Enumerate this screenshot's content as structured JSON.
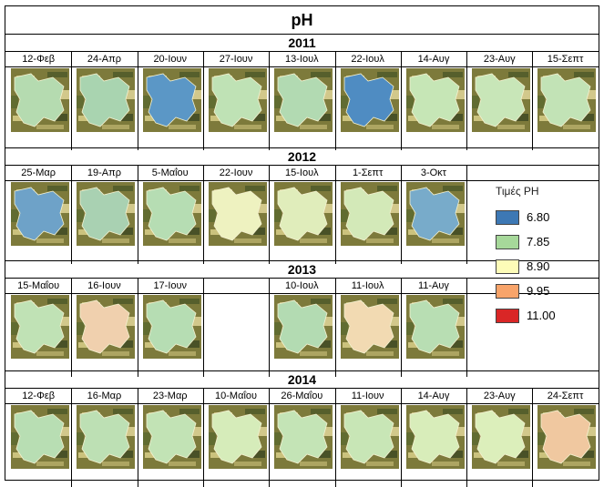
{
  "title": "pH",
  "legend": {
    "title": "Τιμές PH",
    "items": [
      {
        "value": "6.80",
        "color": "#3d78b4"
      },
      {
        "value": "7.85",
        "color": "#a6d89a"
      },
      {
        "value": "8.90",
        "color": "#fdfcb8"
      },
      {
        "value": "9.95",
        "color": "#f8a46a"
      },
      {
        "value": "11.00",
        "color": "#d92626"
      }
    ]
  },
  "years": [
    {
      "year": "2011",
      "dates": [
        "12-Φεβ",
        "24-Απρ",
        "20-Ιουν",
        "27-Ιουν",
        "13-Ιουλ",
        "22-Ιουλ",
        "14-Αυγ",
        "23-Αυγ",
        "15-Σεπτ"
      ],
      "fills": [
        "#b5dbb0",
        "#a9d4b0",
        "#5b97c6",
        "#bfe2b5",
        "#b2dab2",
        "#4f8cc2",
        "#c6e6b6",
        "#c8e6b8",
        "#c2e3b6"
      ]
    },
    {
      "year": "2012",
      "dates": [
        "25-Μαρ",
        "19-Απρ",
        "5-Μαΐου",
        "22-Ιουν",
        "15-Ιουλ",
        "1-Σεπτ",
        "3-Οκτ"
      ],
      "fills": [
        "#6ea2c8",
        "#a9d1b2",
        "#b6ddb3",
        "#eef2c0",
        "#e0edbb",
        "#d3e9b8",
        "#78abca"
      ]
    },
    {
      "year": "2013",
      "dates": [
        "15-Μαΐου",
        "16-Ιουν",
        "17-Ιουν",
        "",
        "10-Ιουλ",
        "11-Ιουλ",
        "11-Αυγ"
      ],
      "fills": [
        "#c0e2b5",
        "#f0d0ae",
        "#b6ddb3",
        "",
        "#b3dbb2",
        "#f2dab2",
        "#b8deb3"
      ]
    },
    {
      "year": "2014",
      "dates": [
        "12-Φεβ",
        "16-Μαρ",
        "23-Μαρ",
        "10-Μαΐου",
        "26-Μαΐου",
        "11-Ιουν",
        "14-Αυγ",
        "23-Αυγ",
        "24-Σεπτ"
      ],
      "fills": [
        "#b8deb3",
        "#bde0b4",
        "#c2e3b5",
        "#d6ecba",
        "#c4e4b6",
        "#c8e6b6",
        "#d8edba",
        "#dcefbb",
        "#f0c8a0"
      ]
    }
  ]
}
